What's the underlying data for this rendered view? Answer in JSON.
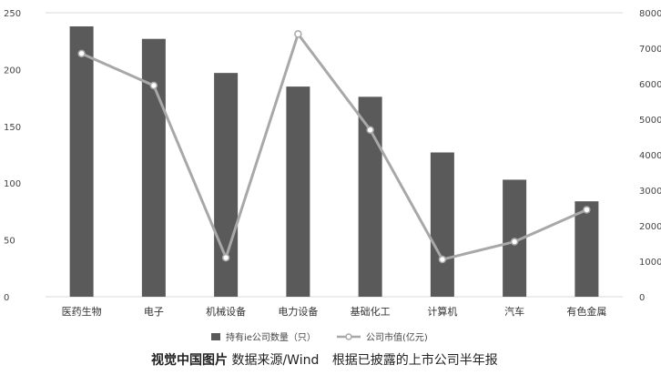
{
  "chart_data": {
    "type": "bar",
    "categories": [
      "医药生物",
      "电子",
      "机械设备",
      "电力设备",
      "基础化工",
      "计算机",
      "汽车",
      "有色金属"
    ],
    "series": [
      {
        "name": "持有ie公司数量（只）",
        "type": "bar",
        "axis": "left",
        "values": [
          238,
          227,
          197,
          185,
          176,
          127,
          103,
          84
        ]
      },
      {
        "name": "公司市值(亿元)",
        "type": "line",
        "axis": "right",
        "values": [
          6850,
          5950,
          1100,
          7400,
          4700,
          1050,
          1550,
          2450
        ]
      }
    ],
    "y_left": {
      "ticks": [
        "0",
        "50",
        "100",
        "150",
        "200",
        "250"
      ],
      "ylim": [
        0,
        250
      ]
    },
    "y_right": {
      "ticks": [
        "0",
        "1000",
        "2000",
        "3000",
        "4000",
        "5000",
        "6000",
        "7000",
        "8000"
      ],
      "ylim": [
        0,
        8000
      ]
    },
    "grid": false,
    "legend": {
      "position": "bottom",
      "bar_label": "持有ie公司数量（只）",
      "line_label": "公司市值(亿元)"
    },
    "colors": {
      "bar": "#5a5a5a",
      "line": "#a8a8a8",
      "marker_fill": "#ffffff",
      "axis": "#d9d9d9"
    }
  },
  "caption": {
    "credit": "视觉中国图片",
    "source": "数据来源/Wind",
    "note": "根据已披露的上市公司半年报"
  }
}
